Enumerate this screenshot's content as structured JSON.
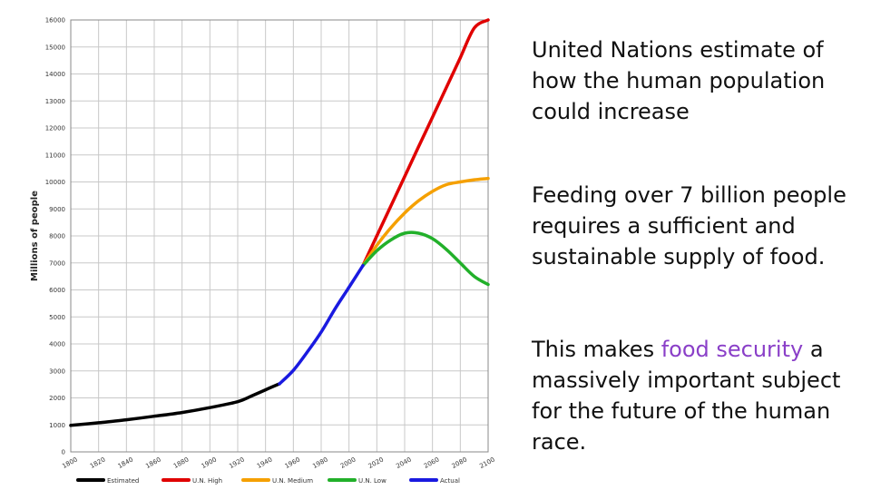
{
  "text": {
    "p1": "United Nations estimate of how the human population could increase",
    "p2": "Feeding over 7 billion people requires a sufficient and sustainable supply of food.",
    "p3_before": "This makes ",
    "p3_highlight": "food security",
    "p3_after": " a massively important subject for the future of the human race.",
    "highlight_color": "#8a3fc8"
  },
  "chart_data": {
    "type": "line",
    "title": "",
    "xlabel": "",
    "ylabel": "Millions of people",
    "xlim": [
      1800,
      2100
    ],
    "ylim": [
      0,
      16000
    ],
    "xticks": [
      1800,
      1820,
      1840,
      1860,
      1880,
      1900,
      1920,
      1940,
      1960,
      1980,
      2000,
      2020,
      2040,
      2060,
      2080,
      2100
    ],
    "xtick_labels": [
      "1800",
      "1820",
      "1840",
      "1860",
      "1880",
      "1900",
      "1920",
      "1940",
      "1960",
      "1980",
      "2000",
      "2020",
      "2040",
      "2060",
      "2080",
      "2100"
    ],
    "yticks": [
      0,
      1000,
      2000,
      3000,
      4000,
      5000,
      6000,
      7000,
      8000,
      9000,
      10000,
      11000,
      12000,
      13000,
      14000,
      15000,
      16000
    ],
    "grid": true,
    "legend": "bottom",
    "series": [
      {
        "name": "Estimated",
        "color": "#000000",
        "x": [
          1800,
          1820,
          1840,
          1860,
          1880,
          1900,
          1920,
          1930,
          1940,
          1950
        ],
        "y": [
          980,
          1080,
          1190,
          1320,
          1460,
          1640,
          1860,
          2070,
          2300,
          2520
        ]
      },
      {
        "name": "U.N. High",
        "color": "#e00000",
        "x": [
          2010,
          2020,
          2030,
          2040,
          2050,
          2060,
          2070,
          2080,
          2090,
          2100
        ],
        "y": [
          6900,
          8000,
          9100,
          10200,
          11300,
          12400,
          13500,
          14600,
          15700,
          16000
        ]
      },
      {
        "name": "U.N. Medium",
        "color": "#f5a000",
        "x": [
          2010,
          2020,
          2030,
          2040,
          2050,
          2060,
          2070,
          2080,
          2090,
          2100
        ],
        "y": [
          6900,
          7650,
          8300,
          8850,
          9300,
          9650,
          9900,
          10000,
          10080,
          10130
        ]
      },
      {
        "name": "U.N. Low",
        "color": "#22b02a",
        "x": [
          2010,
          2020,
          2030,
          2040,
          2050,
          2060,
          2070,
          2080,
          2090,
          2100
        ],
        "y": [
          6900,
          7450,
          7850,
          8100,
          8100,
          7900,
          7500,
          7000,
          6500,
          6200
        ]
      },
      {
        "name": "Actual",
        "color": "#1a1ae0",
        "x": [
          1950,
          1960,
          1970,
          1980,
          1990,
          2000,
          2010
        ],
        "y": [
          2520,
          3020,
          3700,
          4440,
          5300,
          6100,
          6900
        ]
      }
    ]
  }
}
